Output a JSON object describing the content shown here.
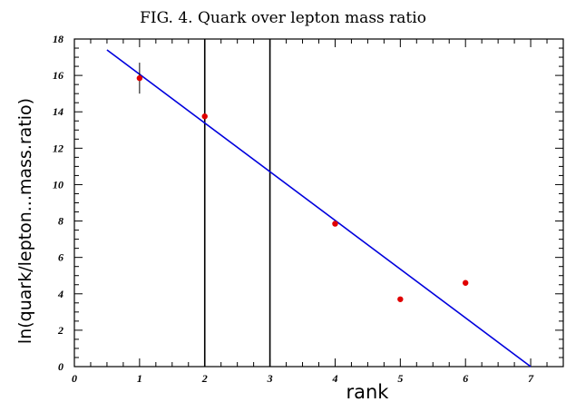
{
  "title": "FIG. 4. Quark over lepton mass ratio",
  "chart_data": {
    "type": "scatter",
    "title": "FIG. 4. Quark over lepton mass ratio",
    "xlabel": "rank",
    "ylabel": "ln(quark/lepton...mass.ratio)",
    "xlim": [
      0,
      7.5
    ],
    "ylim": [
      0,
      18
    ],
    "xticks": [
      "0",
      "1",
      "2",
      "3",
      "4",
      "5",
      "6",
      "7"
    ],
    "yticks": [
      "0",
      "2",
      "4",
      "6",
      "8",
      "10",
      "12",
      "14",
      "16",
      "18"
    ],
    "grid": false,
    "points": [
      {
        "x": 1,
        "y": 15.85,
        "err": 0.85
      },
      {
        "x": 2,
        "y": 13.75
      },
      {
        "x": 4,
        "y": 7.85
      },
      {
        "x": 5,
        "y": 3.7
      },
      {
        "x": 6,
        "y": 4.6
      }
    ],
    "fit_line": {
      "x": [
        0.5,
        7.0
      ],
      "y": [
        17.4,
        0.0
      ]
    },
    "vertical_lines": [
      2,
      3
    ],
    "colors": {
      "points": "#e00000",
      "fit_line": "#0000dd",
      "axes": "#000000"
    }
  }
}
